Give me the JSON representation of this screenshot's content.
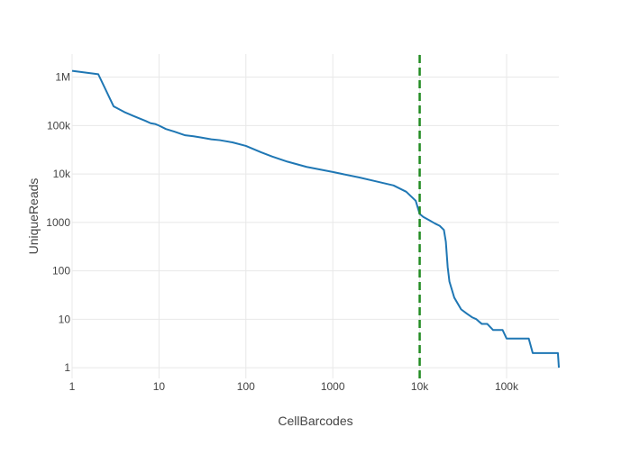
{
  "chart_data": {
    "type": "line",
    "title": "",
    "xlabel": "CellBarcodes",
    "ylabel": "UniqueReads",
    "x_scale": "log",
    "y_scale": "log",
    "xlim": [
      1,
      400000
    ],
    "ylim": [
      0.6,
      3000000
    ],
    "grid": true,
    "x_ticks": [
      {
        "value": 1,
        "label": "1"
      },
      {
        "value": 10,
        "label": "10"
      },
      {
        "value": 100,
        "label": "100"
      },
      {
        "value": 1000,
        "label": "1000"
      },
      {
        "value": 10000,
        "label": "10k"
      },
      {
        "value": 100000,
        "label": "100k"
      }
    ],
    "y_ticks": [
      {
        "value": 1,
        "label": "1"
      },
      {
        "value": 10,
        "label": "10"
      },
      {
        "value": 100,
        "label": "100"
      },
      {
        "value": 1000,
        "label": "1000"
      },
      {
        "value": 10000,
        "label": "10k"
      },
      {
        "value": 100000,
        "label": "100k"
      },
      {
        "value": 1000000,
        "label": "1M"
      }
    ],
    "series": [
      {
        "color": "#1f77b4",
        "style": "solid",
        "x": [
          1,
          2,
          3,
          4,
          5,
          6,
          7,
          8,
          9,
          10,
          12,
          15,
          20,
          25,
          30,
          40,
          50,
          70,
          100,
          150,
          200,
          300,
          500,
          1000,
          2000,
          3000,
          5000,
          7000,
          9000,
          10000,
          11000,
          13000,
          15000,
          17000,
          19000,
          20000,
          21000,
          22000,
          25000,
          30000,
          35000,
          40000,
          45000,
          48000,
          52000,
          60000,
          70000,
          90000,
          100000,
          150000,
          180000,
          200000,
          250000,
          300000,
          390000,
          400000
        ],
        "y": [
          1350000,
          1150000,
          250000,
          190000,
          160000,
          140000,
          125000,
          112000,
          108000,
          100000,
          85000,
          75000,
          63000,
          60000,
          57000,
          52000,
          50000,
          45000,
          38000,
          28000,
          23000,
          18000,
          14000,
          11000,
          8500,
          7200,
          5800,
          4300,
          2800,
          1500,
          1300,
          1100,
          950,
          850,
          700,
          400,
          120,
          60,
          28,
          16,
          13,
          11,
          10,
          9,
          8,
          8,
          6,
          6,
          4,
          4,
          4,
          2,
          2,
          2,
          2,
          1
        ]
      },
      {
        "color": "#228B22",
        "style": "dashed",
        "x": [
          10000,
          10000
        ],
        "y": [
          0.6,
          3000000
        ]
      }
    ]
  }
}
